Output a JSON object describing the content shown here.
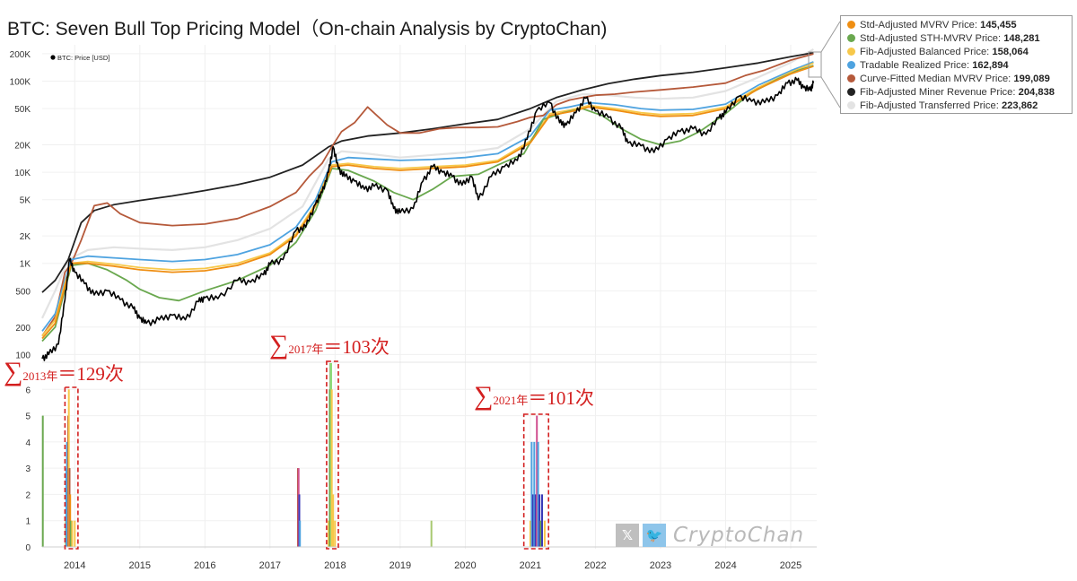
{
  "title": "BTC: Seven Bull Top Pricing Model（On-chain Analysis by CryptoChan)",
  "price_legend_label": "BTC: Price [USD]",
  "legend": [
    {
      "label": "Std-Adjusted MVRV Price:",
      "value": "145,455",
      "color": "#ef8e12"
    },
    {
      "label": "Std-Adjusted STH-MVRV Price:",
      "value": "148,281",
      "color": "#6aa84f"
    },
    {
      "label": "Fib-Adjusted Balanced Price:",
      "value": "158,064",
      "color": "#f7c84a"
    },
    {
      "label": "Tradable Realized Price:",
      "value": "162,894",
      "color": "#4ea3e0"
    },
    {
      "label": "Curve-Fitted Median MVRV Price:",
      "value": "199,089",
      "color": "#b5593a"
    },
    {
      "label": "Fib-Adjusted Miner Revenue Price:",
      "value": "204,838",
      "color": "#222222"
    },
    {
      "label": "Fib-Adjusted Transferred Price:",
      "value": "223,862",
      "color": "#e3e3e3"
    }
  ],
  "annotations": [
    {
      "sub": "2013年",
      "eq": "＝129次"
    },
    {
      "sub": "2017年",
      "eq": "＝103次"
    },
    {
      "sub": "2021年",
      "eq": "＝101次"
    }
  ],
  "watermark": {
    "text": "CryptoChan",
    "x_glyph": "𝕏",
    "bird_glyph": "🐦",
    "x_color": "#bfbfbf",
    "bird_color": "#8ec5ea"
  },
  "chart_data": [
    {
      "type": "line",
      "scale": "log",
      "ylim": [
        90,
        300000
      ],
      "yticks": [
        "100",
        "200",
        "500",
        "1K",
        "2K",
        "5K",
        "10K",
        "20K",
        "50K",
        "100K",
        "200K"
      ],
      "ytick_values": [
        100,
        200,
        500,
        1000,
        2000,
        5000,
        10000,
        20000,
        50000,
        100000,
        200000
      ],
      "x_ticks": [
        "2014",
        "2015",
        "2016",
        "2017",
        "2018",
        "2019",
        "2020",
        "2021",
        "2022",
        "2023",
        "2024",
        "2025"
      ],
      "xlim": [
        2013.5,
        2025.4
      ],
      "series": [
        {
          "name": "BTC: Price [USD]",
          "color": "#000000",
          "x": [
            2013.5,
            2013.6,
            2013.75,
            2013.85,
            2013.92,
            2014.0,
            2014.15,
            2014.3,
            2014.5,
            2014.7,
            2014.9,
            2015.0,
            2015.1,
            2015.3,
            2015.5,
            2015.7,
            2015.9,
            2016.0,
            2016.2,
            2016.5,
            2016.7,
            2016.9,
            2017.0,
            2017.2,
            2017.4,
            2017.55,
            2017.7,
            2017.8,
            2017.9,
            2017.97,
            2018.05,
            2018.15,
            2018.3,
            2018.45,
            2018.6,
            2018.8,
            2018.9,
            2019.0,
            2019.2,
            2019.35,
            2019.5,
            2019.65,
            2019.8,
            2019.95,
            2020.1,
            2020.2,
            2020.4,
            2020.6,
            2020.8,
            2020.95,
            2021.1,
            2021.3,
            2021.45,
            2021.55,
            2021.7,
            2021.85,
            2022.0,
            2022.2,
            2022.4,
            2022.5,
            2022.7,
            2022.9,
            2023.1,
            2023.3,
            2023.5,
            2023.7,
            2023.9,
            2024.0,
            2024.2,
            2024.4,
            2024.6,
            2024.8,
            2024.95,
            2025.1,
            2025.2,
            2025.3,
            2025.35
          ],
          "values": [
            90,
            100,
            130,
            400,
            1100,
            800,
            600,
            450,
            500,
            400,
            320,
            250,
            220,
            240,
            270,
            240,
            380,
            420,
            410,
            650,
            620,
            750,
            980,
            1100,
            2300,
            2500,
            4500,
            6000,
            10000,
            19000,
            11000,
            9000,
            8000,
            6500,
            7000,
            6400,
            4000,
            3600,
            4000,
            8000,
            11500,
            10000,
            9000,
            7200,
            9000,
            5000,
            9000,
            11500,
            13500,
            23000,
            48000,
            58000,
            35000,
            33000,
            45000,
            65000,
            47000,
            40000,
            30000,
            21000,
            19500,
            16500,
            23000,
            28000,
            30000,
            26000,
            40000,
            45000,
            68000,
            60000,
            58000,
            70000,
            95000,
            102000,
            85000,
            80000,
            95000
          ]
        },
        {
          "name": "Fib-Adjusted Transferred Price",
          "color": "#e3e3e3",
          "x": [
            2013.5,
            2013.7,
            2013.9,
            2014.2,
            2014.6,
            2015.0,
            2015.5,
            2016.0,
            2016.5,
            2017.0,
            2017.5,
            2017.9,
            2018.1,
            2018.5,
            2019.0,
            2019.5,
            2020.0,
            2020.5,
            2021.0,
            2021.4,
            2021.8,
            2022.2,
            2022.6,
            2023.0,
            2023.5,
            2024.0,
            2024.5,
            2025.0,
            2025.35
          ],
          "values": [
            250,
            500,
            1100,
            1400,
            1500,
            1450,
            1400,
            1500,
            1800,
            2400,
            4200,
            14000,
            17000,
            16000,
            14500,
            15500,
            16500,
            18500,
            30000,
            60000,
            72000,
            70000,
            66000,
            64000,
            66000,
            78000,
            110000,
            160000,
            223862
          ]
        },
        {
          "name": "Fib-Adjusted Miner Revenue Price",
          "color": "#222222",
          "x": [
            2013.5,
            2013.7,
            2013.9,
            2014.1,
            2014.3,
            2014.6,
            2015.0,
            2015.5,
            2016.0,
            2016.5,
            2017.0,
            2017.5,
            2017.9,
            2018.1,
            2018.5,
            2019.0,
            2019.5,
            2020.0,
            2020.5,
            2021.0,
            2021.4,
            2021.8,
            2022.2,
            2022.6,
            2023.0,
            2023.5,
            2024.0,
            2024.5,
            2025.0,
            2025.35
          ],
          "values": [
            480,
            650,
            1100,
            2800,
            3800,
            4400,
            4900,
            5500,
            6300,
            7300,
            8800,
            12000,
            19000,
            22000,
            25000,
            27000,
            30000,
            34000,
            38000,
            50000,
            66000,
            80000,
            94000,
            105000,
            115000,
            125000,
            140000,
            158000,
            185000,
            204838
          ]
        },
        {
          "name": "Curve-Fitted Median MVRV Price",
          "color": "#b5593a",
          "x": [
            2013.5,
            2013.7,
            2013.85,
            2013.95,
            2014.1,
            2014.3,
            2014.5,
            2014.7,
            2015.0,
            2015.5,
            2016.0,
            2016.5,
            2017.0,
            2017.4,
            2017.6,
            2017.8,
            2017.95,
            2018.1,
            2018.3,
            2018.5,
            2018.8,
            2019.0,
            2019.3,
            2019.6,
            2019.9,
            2020.2,
            2020.5,
            2020.8,
            2021.0,
            2021.2,
            2021.4,
            2021.6,
            2021.8,
            2022.0,
            2022.3,
            2022.6,
            2023.0,
            2023.5,
            2024.0,
            2024.3,
            2024.6,
            2025.0,
            2025.35
          ],
          "values": [
            160,
            260,
            800,
            1000,
            1800,
            4300,
            4600,
            3500,
            2800,
            2600,
            2700,
            3100,
            4200,
            6000,
            9000,
            12500,
            19000,
            28000,
            35000,
            52000,
            33000,
            27000,
            27000,
            30000,
            31000,
            31000,
            31500,
            36000,
            40000,
            42000,
            55000,
            62000,
            66000,
            70000,
            72000,
            76000,
            80000,
            86000,
            95000,
            115000,
            132000,
            170000,
            199089
          ]
        },
        {
          "name": "Tradable Realized Price",
          "color": "#4ea3e0",
          "x": [
            2013.5,
            2013.7,
            2013.85,
            2013.95,
            2014.2,
            2014.6,
            2015.0,
            2015.5,
            2016.0,
            2016.5,
            2017.0,
            2017.4,
            2017.7,
            2017.95,
            2018.2,
            2018.6,
            2019.0,
            2019.5,
            2020.0,
            2020.5,
            2021.0,
            2021.3,
            2021.6,
            2021.9,
            2022.3,
            2022.7,
            2023.0,
            2023.5,
            2024.0,
            2024.5,
            2025.0,
            2025.35
          ],
          "values": [
            180,
            280,
            650,
            1100,
            1200,
            1150,
            1100,
            1050,
            1100,
            1250,
            1600,
            2500,
            5000,
            13000,
            14500,
            14000,
            13500,
            13800,
            14500,
            16000,
            25000,
            48000,
            52000,
            58000,
            55000,
            50000,
            48000,
            49000,
            56000,
            90000,
            130000,
            162894
          ]
        },
        {
          "name": "Fib-Adjusted Balanced Price",
          "color": "#f7c84a",
          "x": [
            2013.5,
            2013.7,
            2013.85,
            2013.95,
            2014.2,
            2014.6,
            2015.0,
            2015.5,
            2016.0,
            2016.5,
            2017.0,
            2017.4,
            2017.7,
            2017.95,
            2018.2,
            2018.6,
            2019.0,
            2019.5,
            2020.0,
            2020.5,
            2021.0,
            2021.3,
            2021.6,
            2021.9,
            2022.3,
            2022.7,
            2023.0,
            2023.5,
            2024.0,
            2024.5,
            2025.0,
            2025.35
          ],
          "values": [
            160,
            240,
            600,
            1000,
            1050,
            980,
            900,
            850,
            880,
            1000,
            1300,
            2100,
            4500,
            12000,
            12500,
            11500,
            11000,
            11500,
            12000,
            13500,
            22000,
            44000,
            48000,
            54000,
            50000,
            45000,
            43000,
            44000,
            52000,
            85000,
            125000,
            158064
          ]
        },
        {
          "name": "Std-Adjusted STH-MVRV Price",
          "color": "#6aa84f",
          "x": [
            2013.5,
            2013.7,
            2013.85,
            2013.95,
            2014.2,
            2014.5,
            2014.8,
            2015.0,
            2015.3,
            2015.6,
            2016.0,
            2016.5,
            2017.0,
            2017.4,
            2017.7,
            2017.95,
            2018.2,
            2018.6,
            2018.9,
            2019.2,
            2019.5,
            2019.8,
            2020.2,
            2020.5,
            2020.9,
            2021.2,
            2021.5,
            2021.8,
            2022.1,
            2022.4,
            2022.7,
            2023.0,
            2023.3,
            2023.6,
            2024.0,
            2024.4,
            2024.8,
            2025.1,
            2025.35
          ],
          "values": [
            140,
            200,
            520,
            950,
            1000,
            850,
            650,
            520,
            420,
            390,
            500,
            650,
            950,
            1700,
            3800,
            11000,
            10500,
            8000,
            6000,
            5000,
            6500,
            9000,
            9500,
            12000,
            16000,
            38000,
            45000,
            50000,
            42000,
            30000,
            23000,
            20000,
            22000,
            28000,
            44000,
            75000,
            105000,
            130000,
            148281
          ]
        },
        {
          "name": "Std-Adjusted MVRV Price",
          "color": "#ef8e12",
          "x": [
            2013.5,
            2013.7,
            2013.85,
            2013.95,
            2014.2,
            2014.6,
            2015.0,
            2015.5,
            2016.0,
            2016.5,
            2017.0,
            2017.4,
            2017.7,
            2017.95,
            2018.2,
            2018.6,
            2019.0,
            2019.5,
            2020.0,
            2020.5,
            2021.0,
            2021.3,
            2021.6,
            2021.9,
            2022.3,
            2022.7,
            2023.0,
            2023.5,
            2024.0,
            2024.5,
            2025.0,
            2025.35
          ],
          "values": [
            150,
            220,
            560,
            1000,
            1000,
            930,
            850,
            800,
            830,
            950,
            1250,
            2000,
            4300,
            11500,
            12000,
            11000,
            10500,
            11000,
            11500,
            13000,
            21000,
            42000,
            46000,
            52000,
            48000,
            43000,
            41000,
            42000,
            50000,
            82000,
            120000,
            145455
          ]
        }
      ]
    },
    {
      "type": "bar",
      "ylim": [
        0,
        7
      ],
      "yticks": [
        "0",
        "1",
        "2",
        "3",
        "4",
        "5",
        "6"
      ],
      "ytick_values": [
        0,
        1,
        2,
        3,
        4,
        5,
        6
      ],
      "x_ticks": [
        "2014",
        "2015",
        "2016",
        "2017",
        "2018",
        "2019",
        "2020",
        "2021",
        "2022",
        "2023",
        "2024",
        "2025"
      ],
      "xlim": [
        2013.5,
        2025.4
      ],
      "bars": [
        {
          "x": 2013.51,
          "value": 5,
          "color": "#6aa84f"
        },
        {
          "x": 2013.86,
          "value": 1,
          "color": "#f7c84a"
        },
        {
          "x": 2013.87,
          "value": 3,
          "color": "#4ea3e0"
        },
        {
          "x": 2013.88,
          "value": 4,
          "color": "#4ea3e0"
        },
        {
          "x": 2013.89,
          "value": 4,
          "color": "#4ea3e0"
        },
        {
          "x": 2013.9,
          "value": 5,
          "color": "#b5593a"
        },
        {
          "x": 2013.91,
          "value": 6,
          "color": "#f7c84a"
        },
        {
          "x": 2013.92,
          "value": 3,
          "color": "#b5593a"
        },
        {
          "x": 2013.93,
          "value": 2,
          "color": "#ef8e12"
        },
        {
          "x": 2013.94,
          "value": 1,
          "color": "#6aa84f"
        },
        {
          "x": 2013.96,
          "value": 1,
          "color": "#f7c84a"
        },
        {
          "x": 2014.0,
          "value": 1,
          "color": "#f7c84a"
        },
        {
          "x": 2017.43,
          "value": 3,
          "color": "#b5593a"
        },
        {
          "x": 2017.44,
          "value": 3,
          "color": "#d05090"
        },
        {
          "x": 2017.45,
          "value": 2,
          "color": "#3a3ab8"
        },
        {
          "x": 2017.46,
          "value": 1,
          "color": "#4ea3e0"
        },
        {
          "x": 2017.9,
          "value": 1,
          "color": "#f7c84a"
        },
        {
          "x": 2017.92,
          "value": 6,
          "color": "#6aa84f"
        },
        {
          "x": 2017.93,
          "value": 7,
          "color": "#6aa84f"
        },
        {
          "x": 2017.94,
          "value": 7,
          "color": "#8fdc7a"
        },
        {
          "x": 2017.95,
          "value": 6,
          "color": "#f7c84a"
        },
        {
          "x": 2017.97,
          "value": 2,
          "color": "#f7c84a"
        },
        {
          "x": 2018.0,
          "value": 1,
          "color": "#f7c84a"
        },
        {
          "x": 2019.48,
          "value": 1,
          "color": "#a8c970"
        },
        {
          "x": 2021.0,
          "value": 1,
          "color": "#f7c84a"
        },
        {
          "x": 2021.02,
          "value": 4,
          "color": "#4ea3e0"
        },
        {
          "x": 2021.04,
          "value": 2,
          "color": "#3a3ab8"
        },
        {
          "x": 2021.06,
          "value": 4,
          "color": "#4ea3e0"
        },
        {
          "x": 2021.08,
          "value": 2,
          "color": "#3a3ab8"
        },
        {
          "x": 2021.1,
          "value": 5,
          "color": "#d05090"
        },
        {
          "x": 2021.12,
          "value": 4,
          "color": "#4ea3e0"
        },
        {
          "x": 2021.14,
          "value": 2,
          "color": "#3a3ab8"
        },
        {
          "x": 2021.16,
          "value": 1,
          "color": "#6aa84f"
        },
        {
          "x": 2021.18,
          "value": 2,
          "color": "#3a3ab8"
        },
        {
          "x": 2021.22,
          "value": 1,
          "color": "#f7c84a"
        }
      ]
    }
  ]
}
